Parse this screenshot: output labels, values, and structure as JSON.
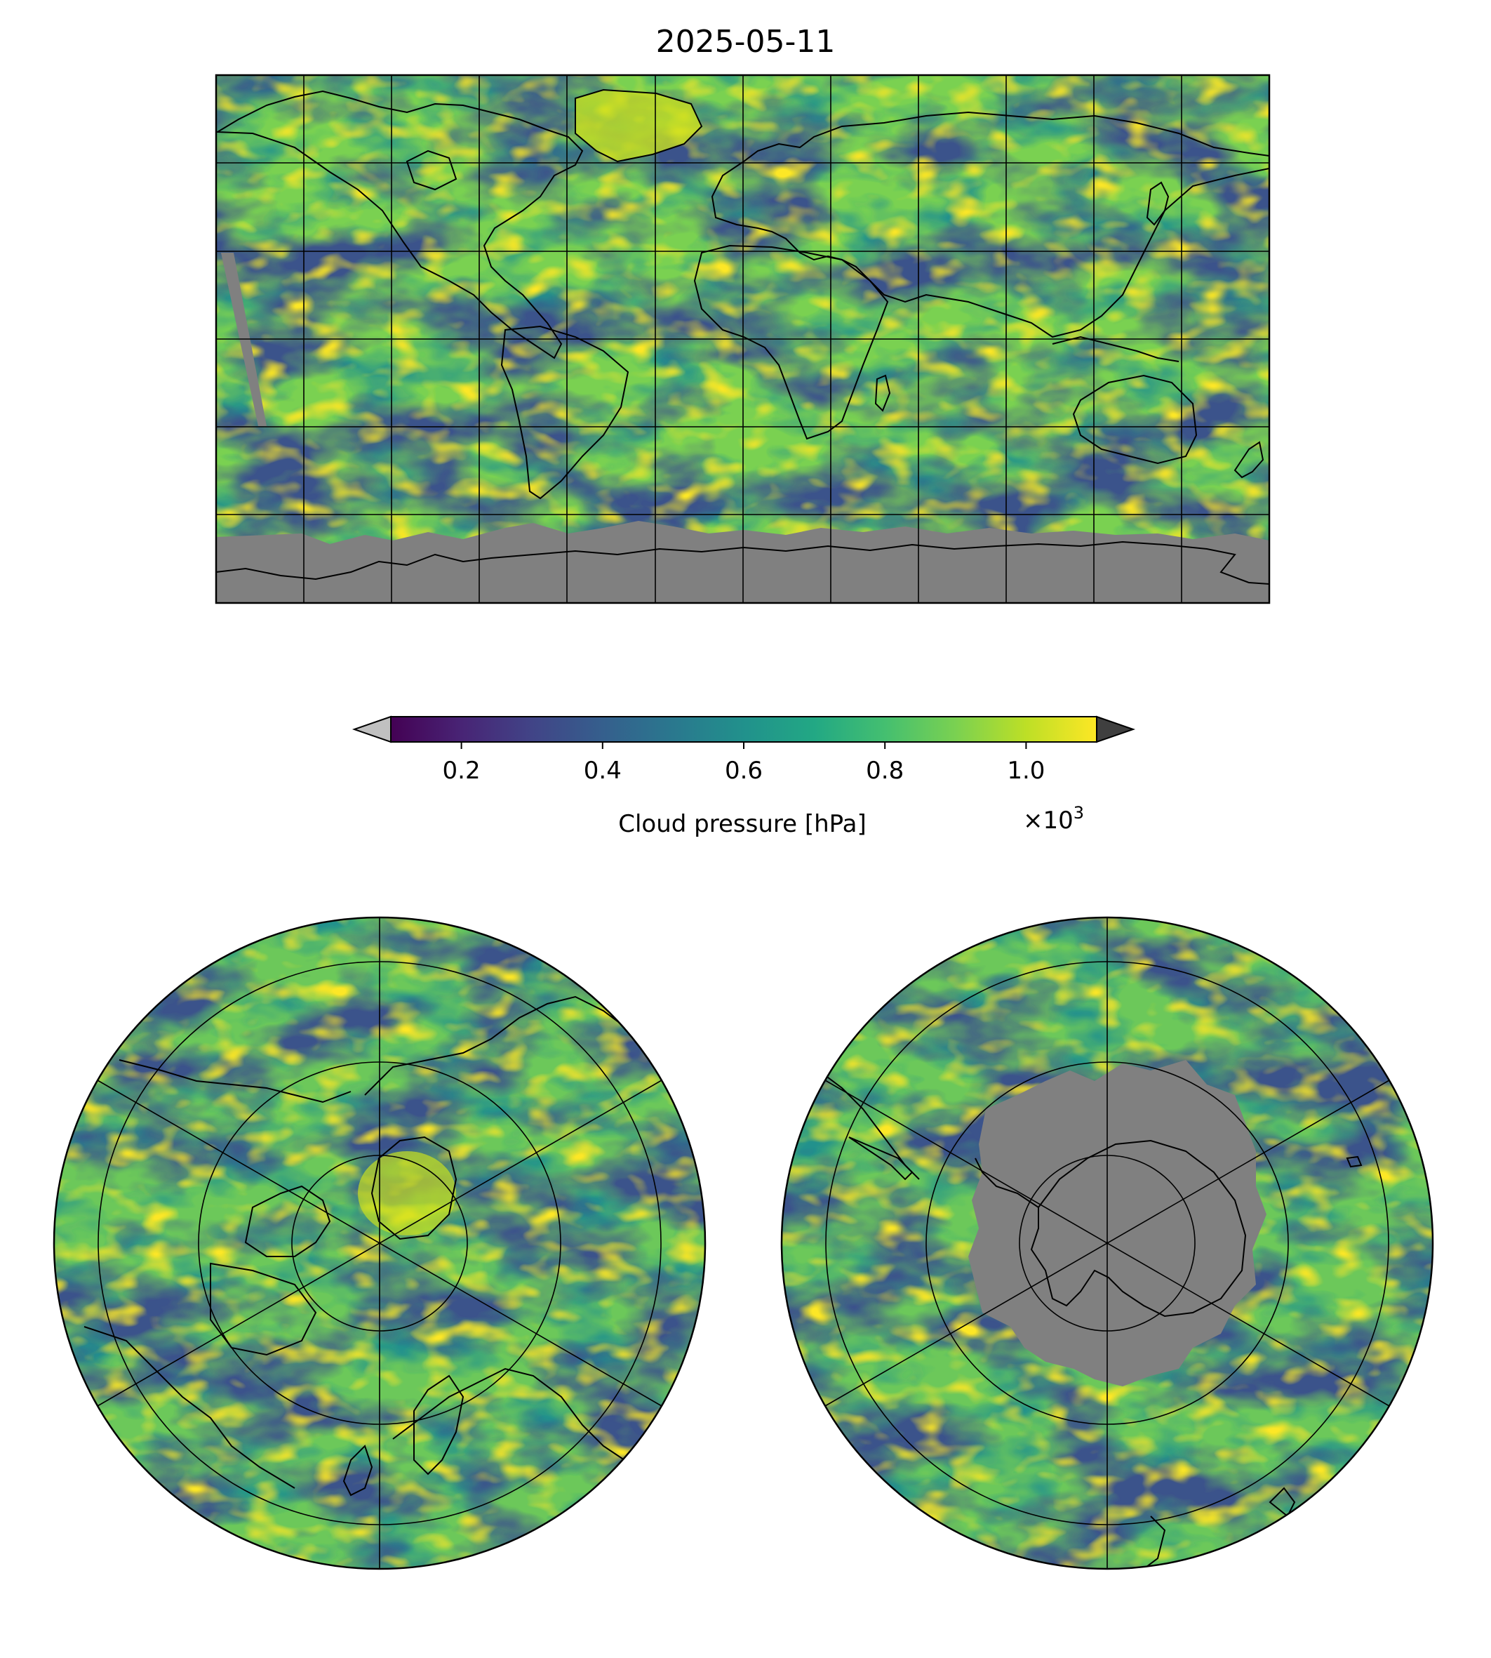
{
  "title": "2025-05-11",
  "colorbar": {
    "label": "Cloud pressure [hPa]",
    "multiplier": "×10",
    "multiplier_exp": "3",
    "ticks": [
      "0.2",
      "0.4",
      "0.6",
      "0.8",
      "1.0"
    ],
    "tick_values": [
      0.2,
      0.4,
      0.6,
      0.8,
      1.0
    ],
    "range": [
      0.1,
      1.1
    ],
    "colormap": "viridis",
    "extend_under_color": "#c0c0c0",
    "extend_over_color": "#3f3f3f"
  },
  "colors": {
    "no_data": "#808080",
    "coastline": "#000000",
    "gridline": "#000000"
  },
  "panels": [
    {
      "name": "global-map",
      "projection": "PlateCarree"
    },
    {
      "name": "north-polar-map",
      "projection": "NorthPolarStereo"
    },
    {
      "name": "south-polar-map",
      "projection": "SouthPolarStereo"
    }
  ]
}
